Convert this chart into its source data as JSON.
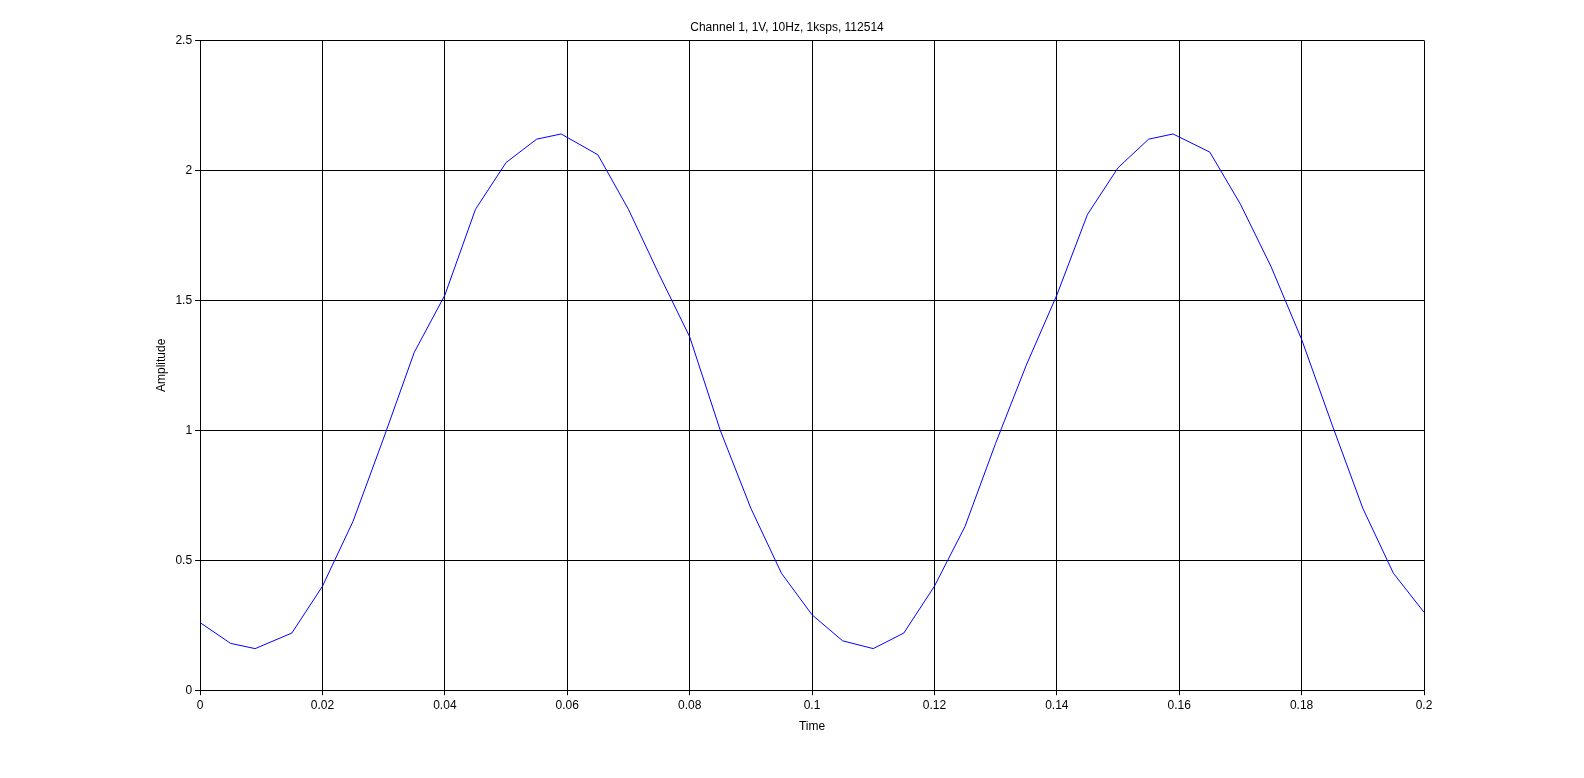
{
  "chart_data": {
    "type": "line",
    "title": "Channel 1, 1V, 10Hz, 1ksps, 112514",
    "xlabel": "Time",
    "ylabel": "Amplitude",
    "x": [
      0,
      0.005,
      0.009,
      0.015,
      0.02,
      0.025,
      0.03,
      0.035,
      0.04,
      0.045,
      0.05,
      0.055,
      0.059,
      0.065,
      0.07,
      0.075,
      0.08,
      0.085,
      0.09,
      0.095,
      0.1,
      0.105,
      0.11,
      0.115,
      0.12,
      0.125,
      0.13,
      0.135,
      0.14,
      0.145,
      0.15,
      0.155,
      0.159,
      0.165,
      0.17,
      0.175,
      0.18,
      0.185,
      0.19,
      0.195,
      0.2
    ],
    "series": [
      {
        "color": "#0000ff",
        "values": [
          0.26,
          0.18,
          0.16,
          0.22,
          0.4,
          0.65,
          0.97,
          1.3,
          1.52,
          1.85,
          2.03,
          2.12,
          2.14,
          2.06,
          1.85,
          1.6,
          1.36,
          1.0,
          0.7,
          0.45,
          0.29,
          0.19,
          0.16,
          0.22,
          0.4,
          0.63,
          0.95,
          1.25,
          1.52,
          1.83,
          2.01,
          2.12,
          2.14,
          2.07,
          1.87,
          1.63,
          1.35,
          1.02,
          0.7,
          0.45,
          0.3
        ]
      }
    ],
    "xlim": [
      0,
      0.2
    ],
    "xticks": [
      0,
      0.02,
      0.04,
      0.06,
      0.08,
      0.1,
      0.12,
      0.14,
      0.16,
      0.18,
      0.2
    ],
    "ylim": [
      0,
      2.5
    ],
    "yticks": [
      0,
      0.5,
      1,
      1.5,
      2,
      2.5
    ],
    "grid": true,
    "legend": false,
    "marker": "none",
    "line_style": "solid"
  }
}
